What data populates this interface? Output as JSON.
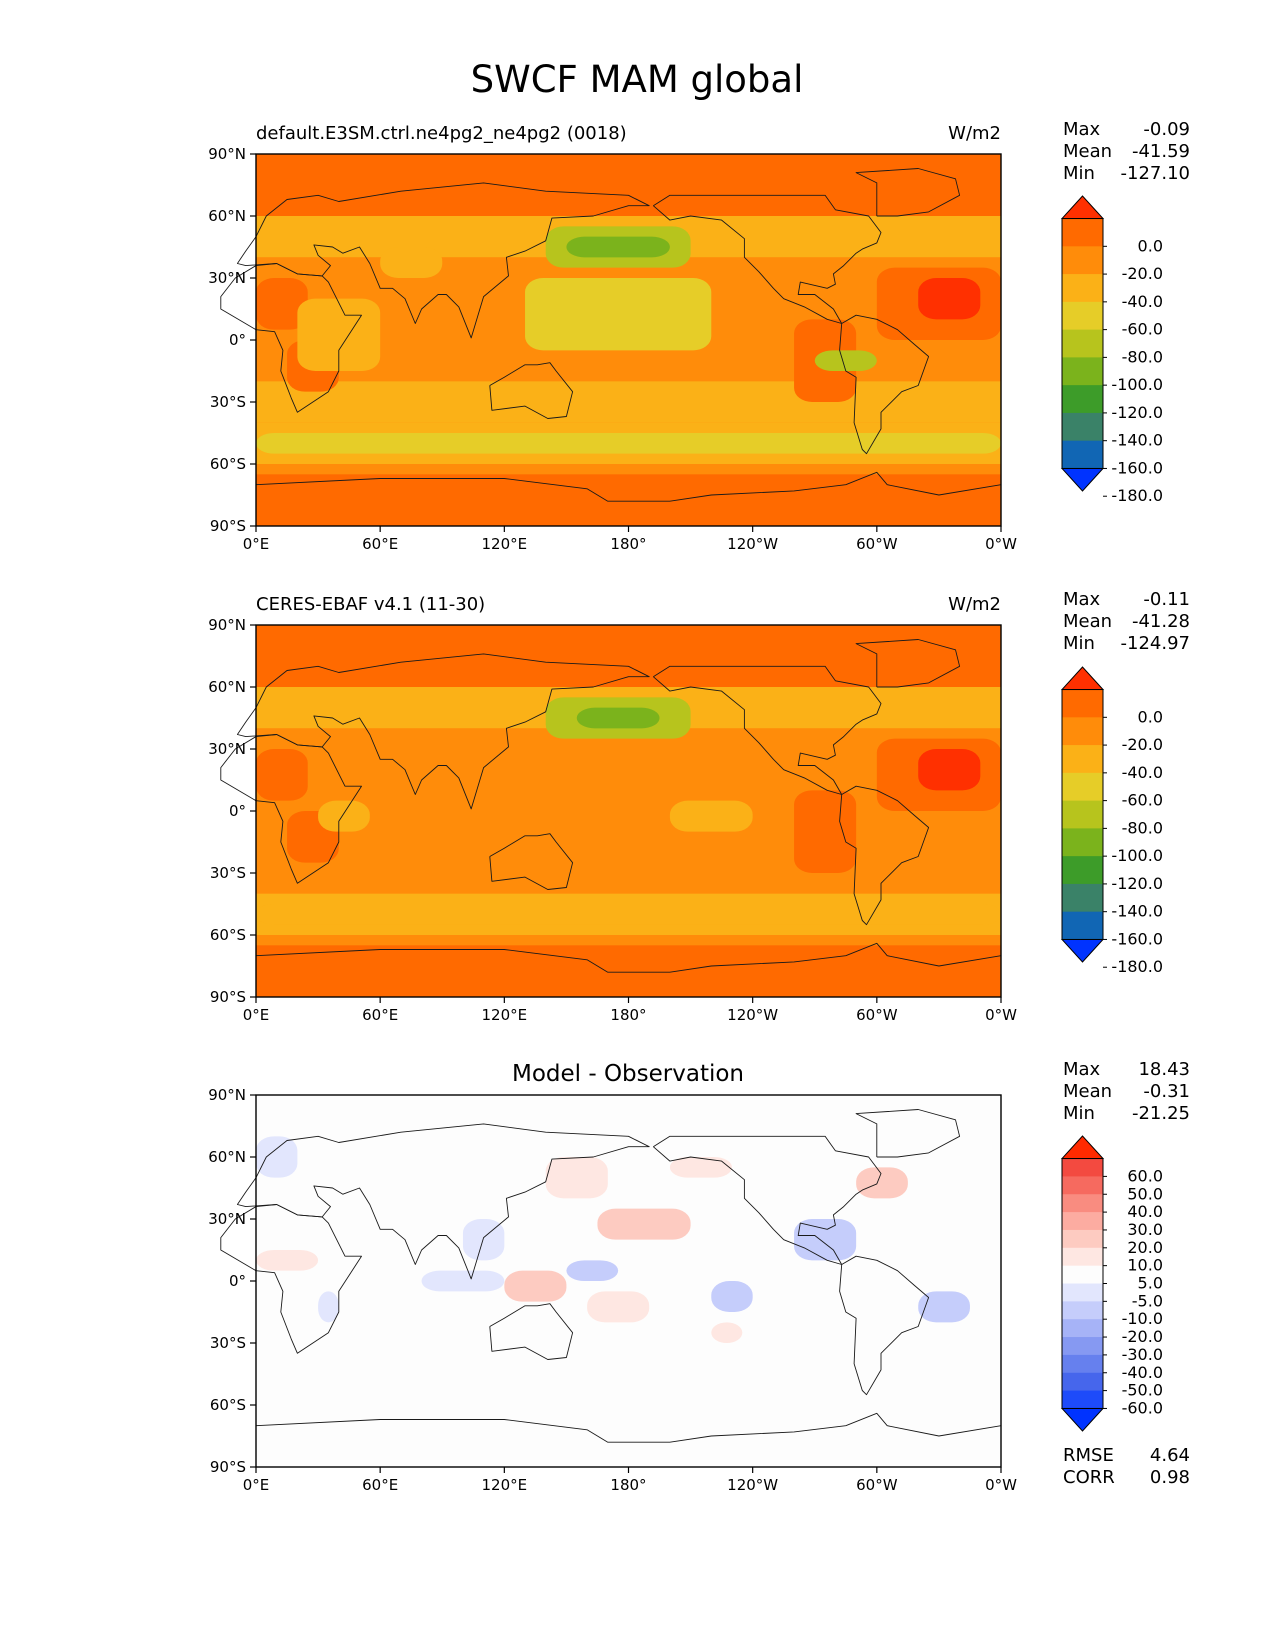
{
  "figure": {
    "title": "SWCF MAM global"
  },
  "axes": {
    "lat_ticks": [
      "90°N",
      "60°N",
      "30°N",
      "0°",
      "30°S",
      "60°S",
      "90°S"
    ],
    "lon_ticks": [
      "0°E",
      "60°E",
      "120°E",
      "180°",
      "120°W",
      "60°W",
      "0°W"
    ]
  },
  "colorbars": {
    "field": {
      "labels": [
        "0.0",
        "-20.0",
        "-40.0",
        "-60.0",
        "-80.0",
        "-100.0",
        "-120.0",
        "-140.0",
        "-160.0",
        "-180.0"
      ],
      "colors": [
        "#ff3000",
        "#ff6a00",
        "#ff8c0a",
        "#fbb117",
        "#e6cd28",
        "#b7c41d",
        "#7bb31c",
        "#3d9c29",
        "#3a8268",
        "#1166b4",
        "#0033ff"
      ]
    },
    "diff": {
      "labels": [
        "60.0",
        "50.0",
        "40.0",
        "30.0",
        "20.0",
        "10.0",
        "5.0",
        "-5.0",
        "-10.0",
        "-20.0",
        "-30.0",
        "-40.0",
        "-50.0",
        "-60.0"
      ],
      "colors": [
        "#ff2a00",
        "#f34a40",
        "#f66a5f",
        "#f98c80",
        "#fcaca1",
        "#fdcbc1",
        "#fee7e2",
        "#fdfdfd",
        "#e2e6fd",
        "#c5cdfb",
        "#a6b3f7",
        "#8699f2",
        "#6680ee",
        "#4666ec",
        "#1e4bfa",
        "#0033ff"
      ]
    }
  },
  "chart_data": [
    {
      "type": "heatmap",
      "title": "default.E3SM.ctrl.ne4pg2_ne4pg2 (0018)",
      "units": "W/m2",
      "stats": [
        {
          "label": "Max",
          "value": "-0.09"
        },
        {
          "label": "Mean",
          "value": "-41.59"
        },
        {
          "label": "Min",
          "value": "-127.10"
        }
      ],
      "xlim": [
        0,
        360
      ],
      "ylim": [
        -90,
        90
      ],
      "base_level": 2,
      "zonal_bands": [
        {
          "lat": [
            60,
            90
          ],
          "level": 1
        },
        {
          "lat": [
            40,
            60
          ],
          "level": 3
        },
        {
          "lat": [
            -20,
            40
          ],
          "level": 2
        },
        {
          "lat": [
            -40,
            -20
          ],
          "level": 3
        },
        {
          "lat": [
            -60,
            -40
          ],
          "level": 3
        },
        {
          "lat": [
            -65,
            -60
          ],
          "level": 2
        },
        {
          "lat": [
            -90,
            -65
          ],
          "level": 1
        }
      ],
      "regions": [
        {
          "lon": [
            0,
            25
          ],
          "lat": [
            5,
            30
          ],
          "level": 1
        },
        {
          "lon": [
            15,
            40
          ],
          "lat": [
            -25,
            0
          ],
          "level": 1
        },
        {
          "lon": [
            20,
            60
          ],
          "lat": [
            -15,
            20
          ],
          "level": 3
        },
        {
          "lon": [
            60,
            90
          ],
          "lat": [
            30,
            45
          ],
          "level": 3
        },
        {
          "lon": [
            130,
            220
          ],
          "lat": [
            -5,
            30
          ],
          "level": 4
        },
        {
          "lon": [
            140,
            210
          ],
          "lat": [
            35,
            55
          ],
          "level": 5
        },
        {
          "lon": [
            150,
            200
          ],
          "lat": [
            40,
            50
          ],
          "level": 6
        },
        {
          "lon": [
            260,
            290
          ],
          "lat": [
            -30,
            10
          ],
          "level": 1
        },
        {
          "lon": [
            300,
            360
          ],
          "lat": [
            0,
            35
          ],
          "level": 1
        },
        {
          "lon": [
            320,
            350
          ],
          "lat": [
            10,
            30
          ],
          "level": 0
        },
        {
          "lon": [
            0,
            360
          ],
          "lat": [
            -55,
            -45
          ],
          "level": 4
        },
        {
          "lon": [
            270,
            300
          ],
          "lat": [
            -15,
            -5
          ],
          "level": 5
        }
      ]
    },
    {
      "type": "heatmap",
      "title": "CERES-EBAF v4.1 (11-30)",
      "units": "W/m2",
      "stats": [
        {
          "label": "Max",
          "value": "-0.11"
        },
        {
          "label": "Mean",
          "value": "-41.28"
        },
        {
          "label": "Min",
          "value": "-124.97"
        }
      ],
      "xlim": [
        0,
        360
      ],
      "ylim": [
        -90,
        90
      ],
      "base_level": 2,
      "zonal_bands": [
        {
          "lat": [
            60,
            90
          ],
          "level": 1
        },
        {
          "lat": [
            40,
            60
          ],
          "level": 3
        },
        {
          "lat": [
            -20,
            40
          ],
          "level": 2
        },
        {
          "lat": [
            -40,
            -20
          ],
          "level": 2
        },
        {
          "lat": [
            -60,
            -40
          ],
          "level": 3
        },
        {
          "lat": [
            -65,
            -60
          ],
          "level": 2
        },
        {
          "lat": [
            -90,
            -65
          ],
          "level": 1
        }
      ],
      "regions": [
        {
          "lon": [
            0,
            25
          ],
          "lat": [
            5,
            30
          ],
          "level": 1
        },
        {
          "lon": [
            15,
            40
          ],
          "lat": [
            -25,
            0
          ],
          "level": 1
        },
        {
          "lon": [
            30,
            55
          ],
          "lat": [
            -10,
            5
          ],
          "level": 3
        },
        {
          "lon": [
            140,
            210
          ],
          "lat": [
            35,
            55
          ],
          "level": 5
        },
        {
          "lon": [
            155,
            195
          ],
          "lat": [
            40,
            50
          ],
          "level": 6
        },
        {
          "lon": [
            260,
            290
          ],
          "lat": [
            -30,
            10
          ],
          "level": 1
        },
        {
          "lon": [
            300,
            360
          ],
          "lat": [
            0,
            35
          ],
          "level": 1
        },
        {
          "lon": [
            320,
            350
          ],
          "lat": [
            10,
            30
          ],
          "level": 0
        },
        {
          "lon": [
            0,
            360
          ],
          "lat": [
            -55,
            -45
          ],
          "level": 3
        },
        {
          "lon": [
            200,
            240
          ],
          "lat": [
            -10,
            5
          ],
          "level": 3
        }
      ]
    },
    {
      "type": "heatmap",
      "title": "Model - Observation",
      "units": "",
      "stats": [
        {
          "label": "Max",
          "value": "18.43"
        },
        {
          "label": "Mean",
          "value": "-0.31"
        },
        {
          "label": "Min",
          "value": "-21.25"
        }
      ],
      "extra_stats": [
        {
          "label": "RMSE",
          "value": "4.64"
        },
        {
          "label": "CORR",
          "value": "0.98"
        }
      ],
      "xlim": [
        0,
        360
      ],
      "ylim": [
        -90,
        90
      ],
      "base_level": 7,
      "zonal_bands": [],
      "regions": [
        {
          "lon": [
            0,
            20
          ],
          "lat": [
            50,
            70
          ],
          "level": 8
        },
        {
          "lon": [
            0,
            30
          ],
          "lat": [
            5,
            15
          ],
          "level": 6
        },
        {
          "lon": [
            30,
            40
          ],
          "lat": [
            -20,
            -5
          ],
          "level": 8
        },
        {
          "lon": [
            100,
            120
          ],
          "lat": [
            10,
            30
          ],
          "level": 8
        },
        {
          "lon": [
            80,
            120
          ],
          "lat": [
            -5,
            5
          ],
          "level": 8
        },
        {
          "lon": [
            120,
            150
          ],
          "lat": [
            -10,
            5
          ],
          "level": 5
        },
        {
          "lon": [
            140,
            170
          ],
          "lat": [
            40,
            60
          ],
          "level": 6
        },
        {
          "lon": [
            165,
            210
          ],
          "lat": [
            20,
            35
          ],
          "level": 5
        },
        {
          "lon": [
            160,
            190
          ],
          "lat": [
            -20,
            -5
          ],
          "level": 6
        },
        {
          "lon": [
            200,
            230
          ],
          "lat": [
            50,
            60
          ],
          "level": 6
        },
        {
          "lon": [
            220,
            240
          ],
          "lat": [
            -15,
            0
          ],
          "level": 9
        },
        {
          "lon": [
            260,
            290
          ],
          "lat": [
            10,
            30
          ],
          "level": 9
        },
        {
          "lon": [
            290,
            315
          ],
          "lat": [
            40,
            55
          ],
          "level": 5
        },
        {
          "lon": [
            320,
            345
          ],
          "lat": [
            -20,
            -5
          ],
          "level": 9
        },
        {
          "lon": [
            220,
            235
          ],
          "lat": [
            -30,
            -20
          ],
          "level": 6
        },
        {
          "lon": [
            150,
            175
          ],
          "lat": [
            0,
            10
          ],
          "level": 9
        }
      ]
    }
  ]
}
